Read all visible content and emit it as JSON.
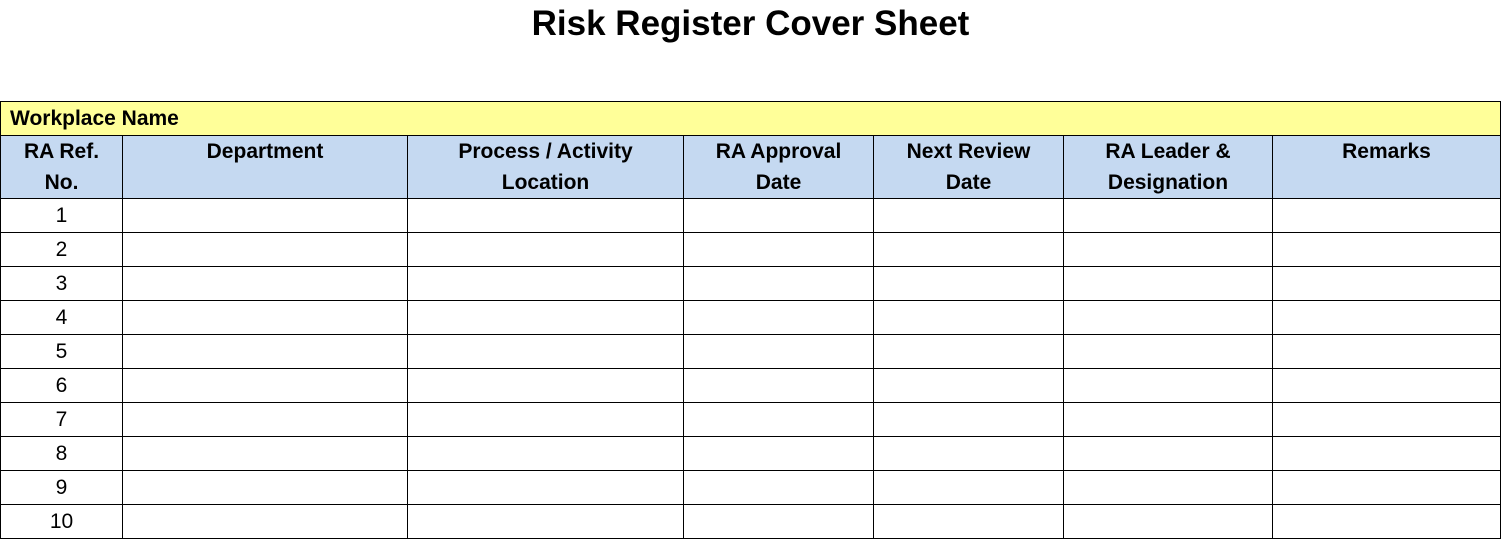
{
  "title": "Risk Register Cover Sheet",
  "workplace_label": "Workplace Name",
  "columns": [
    [
      "RA Ref.",
      "No."
    ],
    [
      "Department",
      ""
    ],
    [
      "Process / Activity",
      "Location"
    ],
    [
      "RA Approval",
      "Date"
    ],
    [
      "Next Review",
      "Date"
    ],
    [
      "RA Leader &",
      "Designation"
    ],
    [
      "Remarks",
      ""
    ]
  ],
  "rows": [
    "1",
    "2",
    "3",
    "4",
    "5",
    "6",
    "7",
    "8",
    "9",
    "10"
  ],
  "colors": {
    "workplace_fill": "#FFFF99",
    "header_fill": "#C5D9F1"
  }
}
